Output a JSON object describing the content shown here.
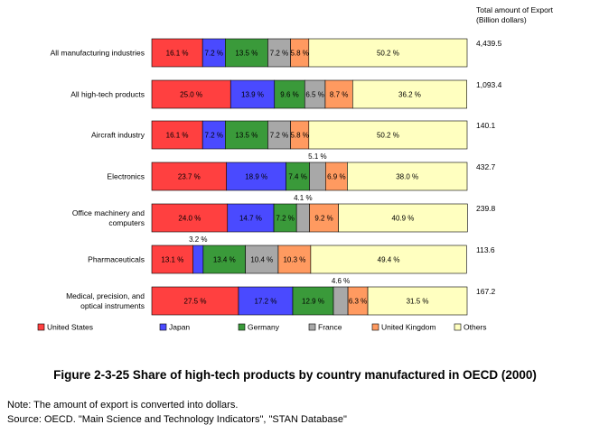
{
  "header": {
    "total_line1": "Total amount of Export",
    "total_line2": "(Billion dollars)"
  },
  "figure_title": "Figure 2-3-25 Share of high-tech products by country manufactured in OECD (2000)",
  "note": "Note: The amount of export is converted into dollars.",
  "source": "Source:  OECD. \"Main Science and Technology Indicators\", \"STAN Database\"",
  "chart_data": {
    "type": "bar",
    "orientation": "horizontal",
    "stacked": "percent",
    "categories": [
      [
        "All manufacturing industries"
      ],
      [
        "All high-tech products"
      ],
      [
        "Aircraft industry"
      ],
      [
        "Electronics"
      ],
      [
        "Office machinery and",
        "computers"
      ],
      [
        "Pharmaceuticals"
      ],
      [
        "Medical, precision, and",
        "optical instruments"
      ]
    ],
    "totals": [
      "4,439.5",
      "1,093.4",
      "140.1",
      "432.7",
      "239.8",
      "113.6",
      "167.2"
    ],
    "series": [
      {
        "name": "United States",
        "color": "#ff4040",
        "values": [
          16.1,
          25.0,
          16.1,
          23.7,
          24.0,
          13.1,
          27.5
        ],
        "labels": [
          "16.1 %",
          "25.0 %",
          "16.1 %",
          "23.7 %",
          "24.0 %",
          "13.1 %",
          "27.5 %"
        ]
      },
      {
        "name": "Japan",
        "color": "#4a4aff",
        "values": [
          7.2,
          13.9,
          7.2,
          18.9,
          14.7,
          3.2,
          17.2
        ],
        "labels": [
          "7.2 %",
          "13.9 %",
          "7.2 %",
          "18.9 %",
          "14.7 %",
          "3.2 %",
          "17.2 %"
        ]
      },
      {
        "name": "Germany",
        "color": "#3a9a3a",
        "values": [
          13.5,
          9.6,
          13.5,
          7.4,
          7.2,
          13.4,
          12.9
        ],
        "labels": [
          "13.5 %",
          "9.6 %",
          "13.5 %",
          "7.4 %",
          "7.2 %",
          "13.4 %",
          "12.9 %"
        ]
      },
      {
        "name": "France",
        "color": "#a8a8a8",
        "values": [
          7.2,
          6.5,
          7.2,
          5.1,
          4.1,
          10.4,
          4.6
        ],
        "labels": [
          "7.2 %",
          "6.5 %",
          "7.2 %",
          "5.1 %",
          "4.1 %",
          "10.4 %",
          "4.6 %"
        ]
      },
      {
        "name": "United Kingdom",
        "color": "#ff9a60",
        "values": [
          5.8,
          8.7,
          5.8,
          6.9,
          9.2,
          10.3,
          6.3
        ],
        "labels": [
          "5.8 %",
          "8.7 %",
          "5.8 %",
          "6.9 %",
          "9.2 %",
          "10.3 %",
          "6.3 %"
        ]
      },
      {
        "name": "Others",
        "color": "#ffffc0",
        "values": [
          50.2,
          36.2,
          50.2,
          38.0,
          40.9,
          49.4,
          31.5
        ],
        "labels": [
          "50.2 %",
          "36.2 %",
          "50.2 %",
          "38.0 %",
          "40.9 %",
          "49.4 %",
          "31.5 %"
        ]
      }
    ],
    "outside_labels": [
      {
        "category": 3,
        "series": 3
      },
      {
        "category": 4,
        "series": 3
      },
      {
        "category": 5,
        "series": 1
      },
      {
        "category": 6,
        "series": 3
      }
    ],
    "xlim": [
      0,
      100
    ],
    "legend": "bottom",
    "grid": false
  }
}
